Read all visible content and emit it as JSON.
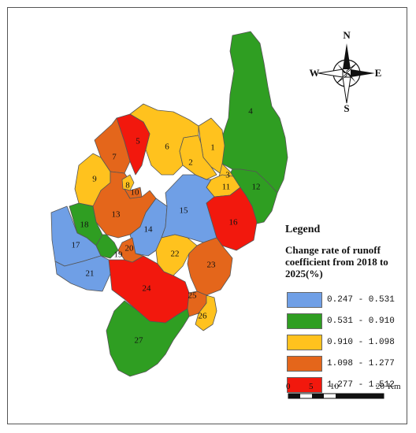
{
  "colors": {
    "class1": "#6f9fe6",
    "class2": "#2f9e22",
    "class3": "#ffc21e",
    "class4": "#e4661b",
    "class5": "#f2180d",
    "boundary": "#555555"
  },
  "legend": {
    "title": "Legend",
    "subtitle": "Change rate of runoff coefficient from 2018 to 2025(%)",
    "items": [
      {
        "label": "0.247 - 0.531",
        "color": "#6f9fe6"
      },
      {
        "label": "0.531 - 0.910",
        "color": "#2f9e22"
      },
      {
        "label": "0.910 - 1.098",
        "color": "#ffc21e"
      },
      {
        "label": "1.098 - 1.277",
        "color": "#e4661b"
      },
      {
        "label": "1.277 - 1.512",
        "color": "#f2180d"
      }
    ]
  },
  "compass": {
    "n": "N",
    "s": "S",
    "e": "E",
    "w": "W"
  },
  "scale": {
    "ticks": [
      "0",
      "5",
      "10",
      "20"
    ],
    "unit": "Km"
  },
  "subbasins": [
    {
      "id": "1",
      "class": 3
    },
    {
      "id": "2",
      "class": 3
    },
    {
      "id": "3",
      "class": 3
    },
    {
      "id": "4",
      "class": 2
    },
    {
      "id": "5",
      "class": 5
    },
    {
      "id": "6",
      "class": 3
    },
    {
      "id": "7",
      "class": 4
    },
    {
      "id": "8",
      "class": 3
    },
    {
      "id": "9",
      "class": 3
    },
    {
      "id": "10",
      "class": 4
    },
    {
      "id": "11",
      "class": 3
    },
    {
      "id": "12",
      "class": 2
    },
    {
      "id": "13",
      "class": 4
    },
    {
      "id": "14",
      "class": 1
    },
    {
      "id": "15",
      "class": 1
    },
    {
      "id": "16",
      "class": 5
    },
    {
      "id": "17",
      "class": 1
    },
    {
      "id": "18",
      "class": 2
    },
    {
      "id": "19",
      "class": 2
    },
    {
      "id": "20",
      "class": 4
    },
    {
      "id": "21",
      "class": 1
    },
    {
      "id": "22",
      "class": 3
    },
    {
      "id": "23",
      "class": 4
    },
    {
      "id": "24",
      "class": 5
    },
    {
      "id": "25",
      "class": 4
    },
    {
      "id": "26",
      "class": 3
    },
    {
      "id": "27",
      "class": 2
    }
  ]
}
